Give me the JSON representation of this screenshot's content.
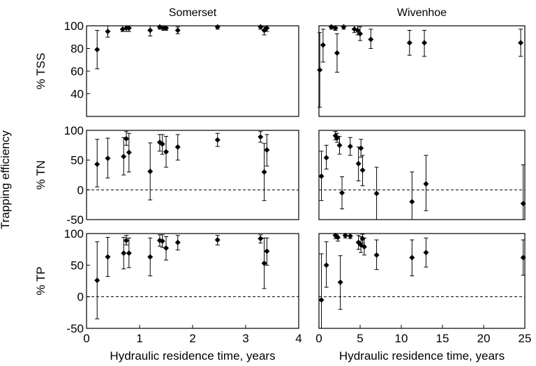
{
  "figure": {
    "ylabel_main": "Trapping efficiency"
  },
  "chart_data": [
    {
      "type": "scatter",
      "title": "Somerset",
      "ylabel": "% TSS",
      "xlabel": "",
      "xlim": [
        0,
        4
      ],
      "ylim": [
        20,
        100
      ],
      "yticks": [
        40,
        60,
        80,
        100
      ],
      "xticks": [],
      "zero_line": false,
      "series": [
        {
          "points": [
            {
              "x": 0.2,
              "y": 79,
              "lo": 62,
              "hi": 96
            },
            {
              "x": 0.4,
              "y": 95,
              "lo": 90,
              "hi": 100
            },
            {
              "x": 0.68,
              "y": 97,
              "lo": 95,
              "hi": 100
            },
            {
              "x": 0.75,
              "y": 98,
              "lo": 95,
              "hi": 100
            },
            {
              "x": 0.8,
              "y": 98,
              "lo": 95,
              "hi": 100
            },
            {
              "x": 1.2,
              "y": 96,
              "lo": 91,
              "hi": 100
            },
            {
              "x": 1.38,
              "y": 99,
              "lo": 97,
              "hi": 100
            },
            {
              "x": 1.45,
              "y": 98,
              "lo": 96,
              "hi": 100
            },
            {
              "x": 1.5,
              "y": 98,
              "lo": 96,
              "hi": 100
            },
            {
              "x": 1.72,
              "y": 96,
              "lo": 93,
              "hi": 99
            },
            {
              "x": 2.47,
              "y": 99,
              "lo": 97,
              "hi": 100
            },
            {
              "x": 3.28,
              "y": 99,
              "lo": 97,
              "hi": 100
            },
            {
              "x": 3.35,
              "y": 96,
              "lo": 92,
              "hi": 99
            },
            {
              "x": 3.4,
              "y": 98,
              "lo": 95,
              "hi": 100
            }
          ]
        }
      ]
    },
    {
      "type": "scatter",
      "title": "Wivenhoe",
      "ylabel": "",
      "xlabel": "",
      "xlim": [
        0,
        25
      ],
      "ylim": [
        20,
        100
      ],
      "yticks": [],
      "xticks": [],
      "zero_line": false,
      "series": [
        {
          "points": [
            {
              "x": 0.1,
              "y": 61,
              "lo": 28,
              "hi": 94
            },
            {
              "x": 0.5,
              "y": 83,
              "lo": 68,
              "hi": 97
            },
            {
              "x": 1.5,
              "y": 99,
              "lo": 97,
              "hi": 100
            },
            {
              "x": 2.0,
              "y": 98,
              "lo": 96,
              "hi": 100
            },
            {
              "x": 2.2,
              "y": 76,
              "lo": 59,
              "hi": 93
            },
            {
              "x": 3.0,
              "y": 99,
              "lo": 97,
              "hi": 100
            },
            {
              "x": 4.3,
              "y": 97,
              "lo": 94,
              "hi": 100
            },
            {
              "x": 4.7,
              "y": 96,
              "lo": 92,
              "hi": 100
            },
            {
              "x": 5.0,
              "y": 93,
              "lo": 87,
              "hi": 99
            },
            {
              "x": 6.3,
              "y": 88,
              "lo": 80,
              "hi": 97
            },
            {
              "x": 11.0,
              "y": 85,
              "lo": 74,
              "hi": 96
            },
            {
              "x": 12.8,
              "y": 85,
              "lo": 73,
              "hi": 96
            },
            {
              "x": 24.5,
              "y": 85,
              "lo": 73,
              "hi": 97
            }
          ]
        }
      ]
    },
    {
      "type": "scatter",
      "title": "",
      "ylabel": "% TN",
      "xlabel": "",
      "xlim": [
        0,
        4
      ],
      "ylim": [
        -50,
        100
      ],
      "yticks": [
        -50,
        0,
        50,
        100
      ],
      "xticks": [],
      "zero_line": true,
      "series": [
        {
          "points": [
            {
              "x": 0.2,
              "y": 43,
              "lo": 5,
              "hi": 85
            },
            {
              "x": 0.4,
              "y": 53,
              "lo": 20,
              "hi": 87
            },
            {
              "x": 0.7,
              "y": 56,
              "lo": 25,
              "hi": 88
            },
            {
              "x": 0.75,
              "y": 86,
              "lo": 75,
              "hi": 98
            },
            {
              "x": 0.8,
              "y": 63,
              "lo": 30,
              "hi": 95
            },
            {
              "x": 1.2,
              "y": 31,
              "lo": -17,
              "hi": 79
            },
            {
              "x": 1.38,
              "y": 80,
              "lo": 65,
              "hi": 93
            },
            {
              "x": 1.43,
              "y": 77,
              "lo": 60,
              "hi": 93
            },
            {
              "x": 1.5,
              "y": 64,
              "lo": 38,
              "hi": 90
            },
            {
              "x": 1.72,
              "y": 72,
              "lo": 50,
              "hi": 93
            },
            {
              "x": 2.47,
              "y": 84,
              "lo": 73,
              "hi": 95
            },
            {
              "x": 3.28,
              "y": 89,
              "lo": 80,
              "hi": 98
            },
            {
              "x": 3.35,
              "y": 30,
              "lo": -18,
              "hi": 78
            },
            {
              "x": 3.4,
              "y": 67,
              "lo": 40,
              "hi": 93
            }
          ]
        }
      ]
    },
    {
      "type": "scatter",
      "title": "",
      "ylabel": "",
      "xlabel": "",
      "xlim": [
        0,
        25
      ],
      "ylim": [
        -50,
        100
      ],
      "yticks": [],
      "xticks": [],
      "zero_line": true,
      "series": [
        {
          "points": [
            {
              "x": 0.3,
              "y": 23,
              "lo": -18,
              "hi": 65
            },
            {
              "x": 0.9,
              "y": 54,
              "lo": 35,
              "hi": 75
            },
            {
              "x": 2.0,
              "y": 91,
              "lo": 84,
              "hi": 98
            },
            {
              "x": 2.2,
              "y": 87,
              "lo": 80,
              "hi": 95
            },
            {
              "x": 2.5,
              "y": 75,
              "lo": 60,
              "hi": 90
            },
            {
              "x": 2.8,
              "y": -5,
              "lo": -32,
              "hi": 22
            },
            {
              "x": 3.8,
              "y": 73,
              "lo": 58,
              "hi": 88
            },
            {
              "x": 4.8,
              "y": 44,
              "lo": 15,
              "hi": 72
            },
            {
              "x": 5.1,
              "y": 70,
              "lo": 55,
              "hi": 85
            },
            {
              "x": 5.3,
              "y": 33,
              "lo": 7,
              "hi": 58
            },
            {
              "x": 7.0,
              "y": -6,
              "lo": -50,
              "hi": 38
            },
            {
              "x": 11.3,
              "y": -20,
              "lo": -50,
              "hi": 30
            },
            {
              "x": 13.0,
              "y": 10,
              "lo": -35,
              "hi": 58
            },
            {
              "x": 24.8,
              "y": -23,
              "lo": -50,
              "hi": 42
            }
          ]
        }
      ]
    },
    {
      "type": "scatter",
      "title": "",
      "ylabel": "% TP",
      "xlabel": "Hydraulic residence time, years",
      "xlim": [
        0,
        4
      ],
      "ylim": [
        -50,
        100
      ],
      "yticks": [
        -50,
        0,
        50,
        100
      ],
      "xticks": [
        0,
        1,
        2,
        3,
        4
      ],
      "zero_line": true,
      "series": [
        {
          "points": [
            {
              "x": 0.2,
              "y": 26,
              "lo": -35,
              "hi": 87
            },
            {
              "x": 0.4,
              "y": 63,
              "lo": 32,
              "hi": 94
            },
            {
              "x": 0.7,
              "y": 69,
              "lo": 44,
              "hi": 94
            },
            {
              "x": 0.75,
              "y": 89,
              "lo": 82,
              "hi": 97
            },
            {
              "x": 0.8,
              "y": 69,
              "lo": 46,
              "hi": 93
            },
            {
              "x": 1.2,
              "y": 63,
              "lo": 33,
              "hi": 93
            },
            {
              "x": 1.38,
              "y": 89,
              "lo": 80,
              "hi": 98
            },
            {
              "x": 1.43,
              "y": 88,
              "lo": 78,
              "hi": 98
            },
            {
              "x": 1.5,
              "y": 77,
              "lo": 58,
              "hi": 95
            },
            {
              "x": 1.72,
              "y": 86,
              "lo": 74,
              "hi": 97
            },
            {
              "x": 2.47,
              "y": 90,
              "lo": 82,
              "hi": 97
            },
            {
              "x": 3.28,
              "y": 92,
              "lo": 85,
              "hi": 98
            },
            {
              "x": 3.35,
              "y": 53,
              "lo": 13,
              "hi": 93
            },
            {
              "x": 3.4,
              "y": 72,
              "lo": 50,
              "hi": 93
            }
          ]
        }
      ]
    },
    {
      "type": "scatter",
      "title": "",
      "ylabel": "",
      "xlabel": "Hydraulic residence time, years",
      "xlim": [
        0,
        25
      ],
      "ylim": [
        -50,
        100
      ],
      "yticks": [],
      "xticks": [
        0,
        5,
        10,
        15,
        20,
        25
      ],
      "zero_line": true,
      "series": [
        {
          "points": [
            {
              "x": 0.3,
              "y": -5,
              "lo": -50,
              "hi": 68
            },
            {
              "x": 0.9,
              "y": 50,
              "lo": 15,
              "hi": 87
            },
            {
              "x": 2.0,
              "y": 97,
              "lo": 92,
              "hi": 100
            },
            {
              "x": 2.3,
              "y": 94,
              "lo": 88,
              "hi": 100
            },
            {
              "x": 2.6,
              "y": 23,
              "lo": -20,
              "hi": 65
            },
            {
              "x": 3.2,
              "y": 97,
              "lo": 93,
              "hi": 100
            },
            {
              "x": 3.8,
              "y": 96,
              "lo": 92,
              "hi": 100
            },
            {
              "x": 4.8,
              "y": 86,
              "lo": 75,
              "hi": 97
            },
            {
              "x": 5.1,
              "y": 82,
              "lo": 70,
              "hi": 95
            },
            {
              "x": 5.3,
              "y": 92,
              "lo": 85,
              "hi": 99
            },
            {
              "x": 5.5,
              "y": 79,
              "lo": 66,
              "hi": 93
            },
            {
              "x": 7.0,
              "y": 66,
              "lo": 43,
              "hi": 90
            },
            {
              "x": 11.3,
              "y": 62,
              "lo": 33,
              "hi": 90
            },
            {
              "x": 13.0,
              "y": 70,
              "lo": 47,
              "hi": 93
            },
            {
              "x": 24.8,
              "y": 62,
              "lo": 34,
              "hi": 90
            }
          ]
        }
      ]
    }
  ]
}
